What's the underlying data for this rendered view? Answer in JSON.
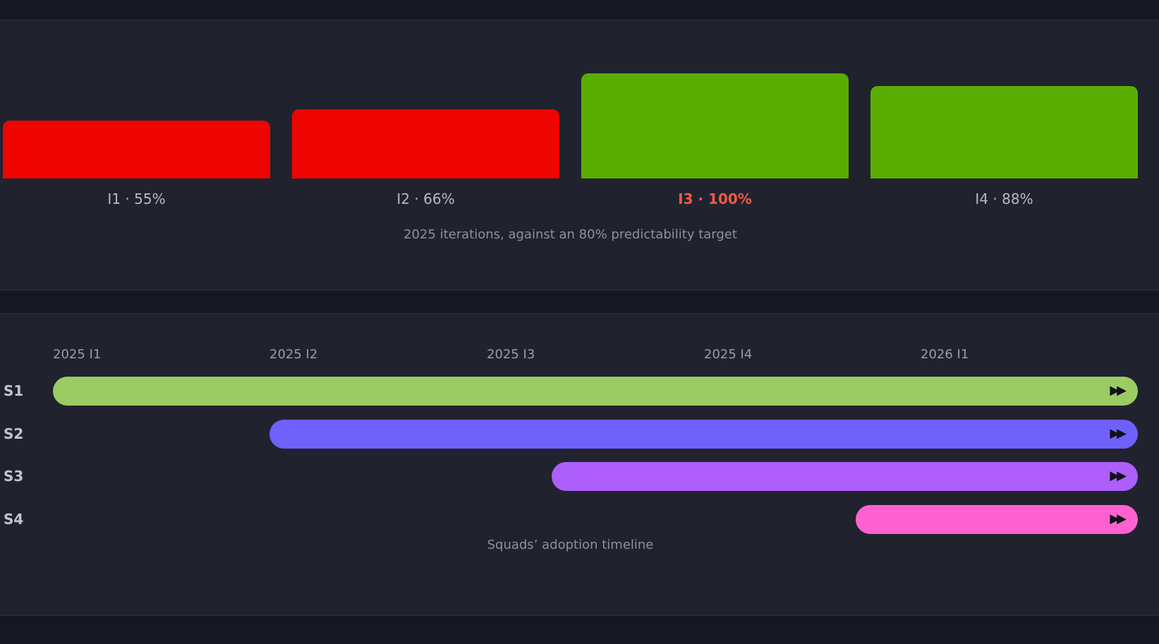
{
  "chart_data": [
    {
      "type": "bar",
      "categories": [
        "I1",
        "I2",
        "I3",
        "I4"
      ],
      "values": [
        55,
        66,
        100,
        88
      ],
      "labels": [
        "I1 · 55%",
        "I2 · 66%",
        "I3 · 100%",
        "I4 · 88%"
      ],
      "highlighted": "I3",
      "target": 80,
      "caption": "2025 iterations, against an 80% predictability target",
      "colors": {
        "below_target": "#ee0400",
        "at_or_above_target": "#5aad00",
        "highlight_label": "#ef5a45"
      }
    },
    {
      "type": "timeline",
      "ticks": [
        "2025 I1",
        "2025 I2",
        "2025 I3",
        "2025 I4",
        "2026 I1"
      ],
      "squads": [
        {
          "name": "S1",
          "start": "2025 I1",
          "ongoing": true,
          "color": "#9ccb63"
        },
        {
          "name": "S2",
          "start": "2025 I2",
          "ongoing": true,
          "color": "#6e61fb"
        },
        {
          "name": "S3",
          "start": "2025 I3",
          "ongoing": true,
          "color": "#ad5efb"
        },
        {
          "name": "S4",
          "start": "2025 I4",
          "ongoing": true,
          "color": "#ff62d0"
        }
      ],
      "ongoing_icon": "fast-forward-icon",
      "ongoing_glyph": "▶▶",
      "caption": "Squads’ adoption timeline"
    }
  ]
}
